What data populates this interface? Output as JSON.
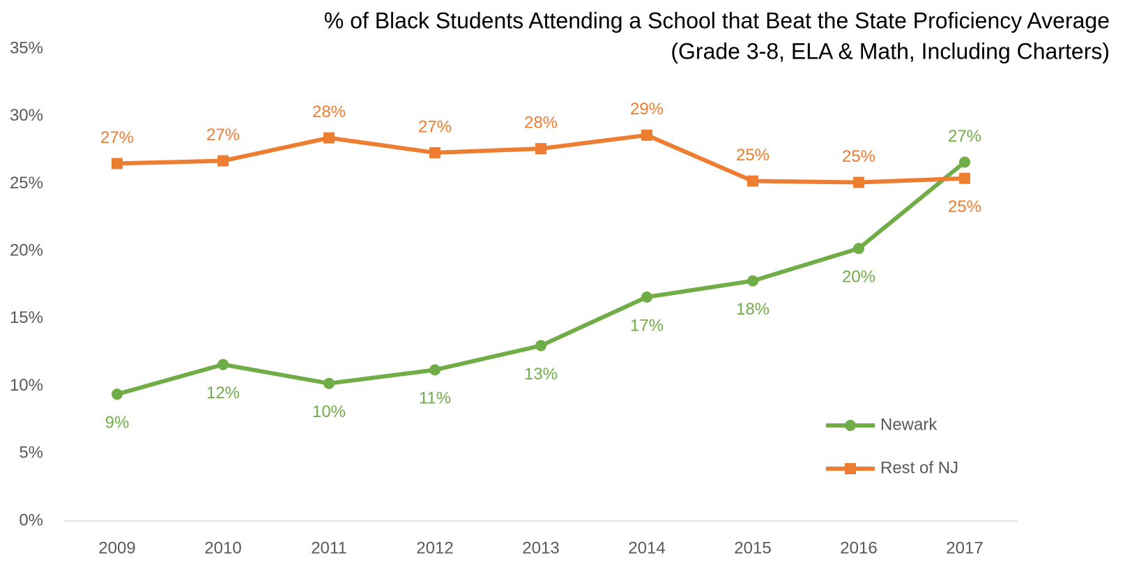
{
  "chart_data": {
    "type": "line",
    "title": "% of Black Students Attending a School that Beat the State Proficiency Average",
    "subtitle": "(Grade 3-8, ELA & Math, Including Charters)",
    "categories": [
      "2009",
      "2010",
      "2011",
      "2012",
      "2013",
      "2014",
      "2015",
      "2016",
      "2017"
    ],
    "series": [
      {
        "name": "Newark",
        "color": "#70ad47",
        "marker": "circle",
        "values": [
          9.4,
          11.6,
          10.2,
          11.2,
          13.0,
          16.6,
          17.8,
          20.2,
          26.6
        ],
        "value_labels": [
          "9%",
          "12%",
          "10%",
          "11%",
          "13%",
          "17%",
          "18%",
          "20%",
          "27%"
        ]
      },
      {
        "name": "Rest of NJ",
        "color": "#ed7d31",
        "marker": "square",
        "values": [
          26.5,
          26.7,
          28.4,
          27.3,
          27.6,
          28.6,
          25.2,
          25.1,
          25.4
        ],
        "value_labels": [
          "27%",
          "27%",
          "28%",
          "27%",
          "28%",
          "29%",
          "25%",
          "25%",
          "25%"
        ]
      }
    ],
    "ylim": [
      0,
      35
    ],
    "yticks": [
      {
        "value": 0,
        "label": "0%"
      },
      {
        "value": 5,
        "label": "5%"
      },
      {
        "value": 10,
        "label": "10%"
      },
      {
        "value": 15,
        "label": "15%"
      },
      {
        "value": 20,
        "label": "20%"
      },
      {
        "value": 25,
        "label": "25%"
      },
      {
        "value": 30,
        "label": "30%"
      },
      {
        "value": 35,
        "label": "35%"
      }
    ],
    "grid": false,
    "legend": "lower right"
  }
}
